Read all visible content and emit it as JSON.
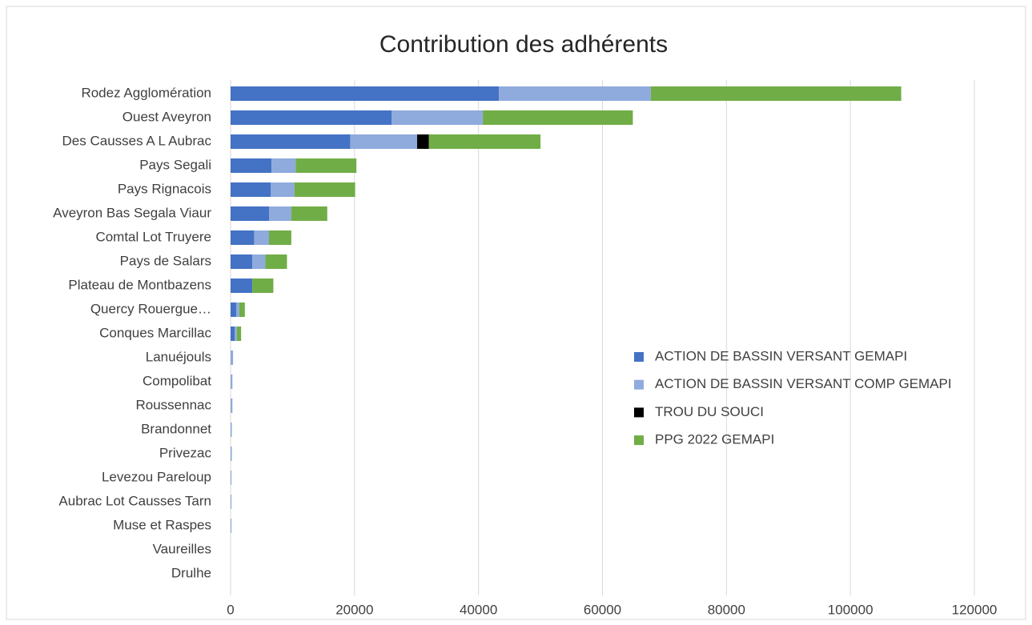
{
  "chart_data": {
    "type": "bar",
    "orientation": "horizontal",
    "stacked": true,
    "title": "Contribution des adhérents",
    "categories": [
      "Rodez Agglomération",
      "Ouest Aveyron",
      "Des Causses A L Aubrac",
      "Pays Segali",
      "Pays Rignacois",
      "Aveyron Bas Segala Viaur",
      "Comtal Lot Truyere",
      "Pays de Salars",
      "Plateau de Montbazens",
      "Quercy Rouergue…",
      "Conques Marcillac",
      "Lanuéjouls",
      "Compolibat",
      "Roussennac",
      "Brandonnet",
      "Privezac",
      "Levezou Pareloup",
      "Aubrac Lot Causses Tarn",
      "Muse et Raspes",
      "Vaureilles",
      "Drulhe"
    ],
    "series": [
      {
        "name": "ACTION DE BASSIN VERSANT GEMAPI",
        "color": "#4472c4",
        "values": [
          43300,
          26000,
          19300,
          6600,
          6500,
          6200,
          3800,
          3500,
          3500,
          900,
          650,
          0,
          0,
          0,
          0,
          0,
          0,
          0,
          0,
          0,
          0
        ]
      },
      {
        "name": "ACTION DE BASSIN VERSANT COMP GEMAPI",
        "color": "#8faadc",
        "values": [
          24500,
          14700,
          10800,
          3900,
          3800,
          3600,
          2400,
          2100,
          0,
          500,
          350,
          400,
          300,
          300,
          200,
          200,
          150,
          150,
          150,
          0,
          0
        ]
      },
      {
        "name": "TROU DU SOUCI",
        "color": "#000000",
        "values": [
          0,
          0,
          1900,
          0,
          0,
          0,
          0,
          0,
          0,
          0,
          0,
          0,
          0,
          0,
          0,
          0,
          0,
          0,
          0,
          0,
          0
        ]
      },
      {
        "name": "PPG 2022 GEMAPI",
        "color": "#70ad47",
        "values": [
          40400,
          24200,
          18000,
          9800,
          9800,
          5800,
          3600,
          3500,
          3400,
          900,
          700,
          0,
          0,
          0,
          0,
          0,
          0,
          0,
          0,
          0,
          0
        ]
      }
    ],
    "xlim": [
      0,
      120000
    ],
    "xticks": [
      0,
      20000,
      40000,
      60000,
      80000,
      100000,
      120000
    ],
    "grid": true
  }
}
